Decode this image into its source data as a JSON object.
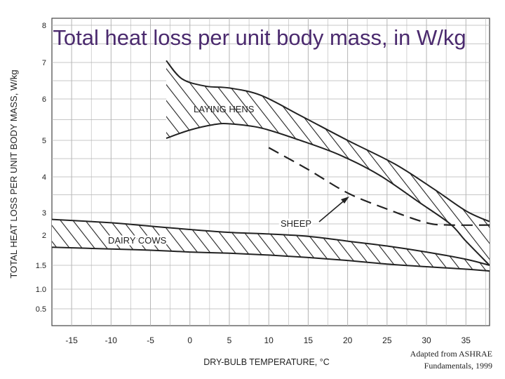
{
  "slide": {
    "title": "Total heat loss per unit body mass, in W/kg",
    "credit_line1": "Adapted from ASHRAE",
    "credit_line2": "Fundamentals, 1999"
  },
  "colors": {
    "title": "#4b2a6e",
    "ink": "#222222",
    "grid": "#b5b5b5"
  },
  "chart_data": {
    "type": "area",
    "xlabel": "DRY-BULB TEMPERATURE, °C",
    "ylabel": "TOTAL HEAT LOSS PER UNIT BODY MASS, W/kg",
    "xlim": [
      -17.5,
      38
    ],
    "x_ticks": [
      -15,
      -10,
      -5,
      0,
      5,
      10,
      15,
      20,
      25,
      30,
      35
    ],
    "y_ticks": [
      0.5,
      1.0,
      1.5,
      2,
      3,
      4,
      5,
      6,
      7,
      8
    ],
    "y_tick_labels": [
      "0.5",
      "1.0",
      "1.5",
      "2",
      "3",
      "4",
      "5",
      "6",
      "7",
      "8"
    ],
    "grid": true,
    "series": [
      {
        "name": "LAYING HENS",
        "style": "hatched band",
        "upper": {
          "x": [
            -3,
            -1,
            2,
            5,
            9,
            14,
            20,
            26,
            31,
            35,
            38
          ],
          "y": [
            7.05,
            6.55,
            6.35,
            6.3,
            6.1,
            5.6,
            5.0,
            4.35,
            3.65,
            3.05,
            2.6
          ]
        },
        "lower": {
          "x": [
            -3,
            0,
            3,
            5,
            9,
            14,
            19,
            24,
            29,
            33,
            35,
            38
          ],
          "y": [
            5.05,
            5.25,
            5.38,
            5.4,
            5.3,
            5.0,
            4.6,
            4.05,
            3.3,
            2.5,
            1.9,
            1.5
          ]
        }
      },
      {
        "name": "SHEEP",
        "style": "dashed line",
        "x": [
          10,
          15,
          20,
          25,
          30,
          33,
          38
        ],
        "y": [
          4.8,
          4.2,
          3.55,
          3.1,
          2.55,
          2.45,
          2.45
        ]
      },
      {
        "name": "DAIRY COWS",
        "style": "hatched band",
        "upper": {
          "x": [
            -17.5,
            -10,
            -5,
            0,
            5,
            10,
            15,
            20,
            25,
            30,
            35,
            38
          ],
          "y": [
            2.7,
            2.55,
            2.4,
            2.25,
            2.12,
            2.05,
            1.98,
            1.9,
            1.82,
            1.72,
            1.6,
            1.5
          ]
        },
        "lower": {
          "x": [
            -17.5,
            -10,
            -5,
            0,
            5,
            10,
            15,
            20,
            25,
            30,
            35,
            38
          ],
          "y": [
            1.8,
            1.77,
            1.75,
            1.72,
            1.7,
            1.67,
            1.63,
            1.58,
            1.52,
            1.47,
            1.42,
            1.38
          ]
        }
      }
    ]
  }
}
